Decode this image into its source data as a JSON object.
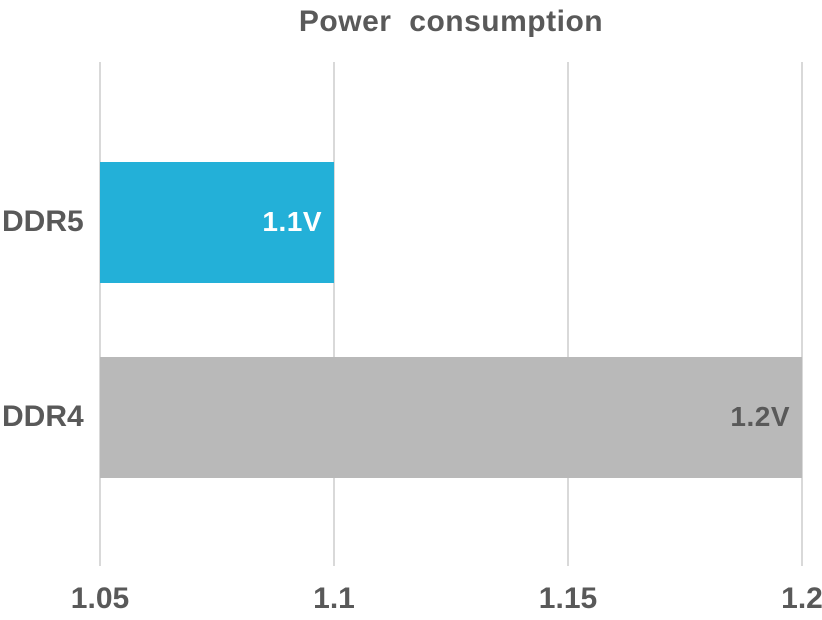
{
  "chart_data": {
    "type": "bar",
    "orientation": "horizontal",
    "title": "Power consumption",
    "categories": [
      "DDR5",
      "DDR4"
    ],
    "values": [
      1.1,
      1.2
    ],
    "value_labels": [
      "1.1V",
      "1.2V"
    ],
    "bar_colors": [
      "#23b0d8",
      "#b9b9b9"
    ],
    "value_label_colors": [
      "#ffffff",
      "#595959"
    ],
    "xlabel": "",
    "ylabel": "",
    "xlim": [
      1.05,
      1.2
    ],
    "x_ticks": [
      {
        "value": 1.05,
        "label": "1.05"
      },
      {
        "value": 1.1,
        "label": "1.1"
      },
      {
        "value": 1.15,
        "label": "1.15"
      },
      {
        "value": 1.2,
        "label": "1.2"
      }
    ],
    "grid": "vertical-gridlines-only",
    "legend": "none",
    "background": "#ffffff"
  },
  "colors": {
    "title_text": "#595959",
    "axis_text": "#595959",
    "gridline": "#d9d9d9",
    "ddr5_bar": "#23b0d8",
    "ddr4_bar": "#b9b9b9",
    "ddr5_value_text": "#ffffff",
    "ddr4_value_text": "#595959"
  }
}
